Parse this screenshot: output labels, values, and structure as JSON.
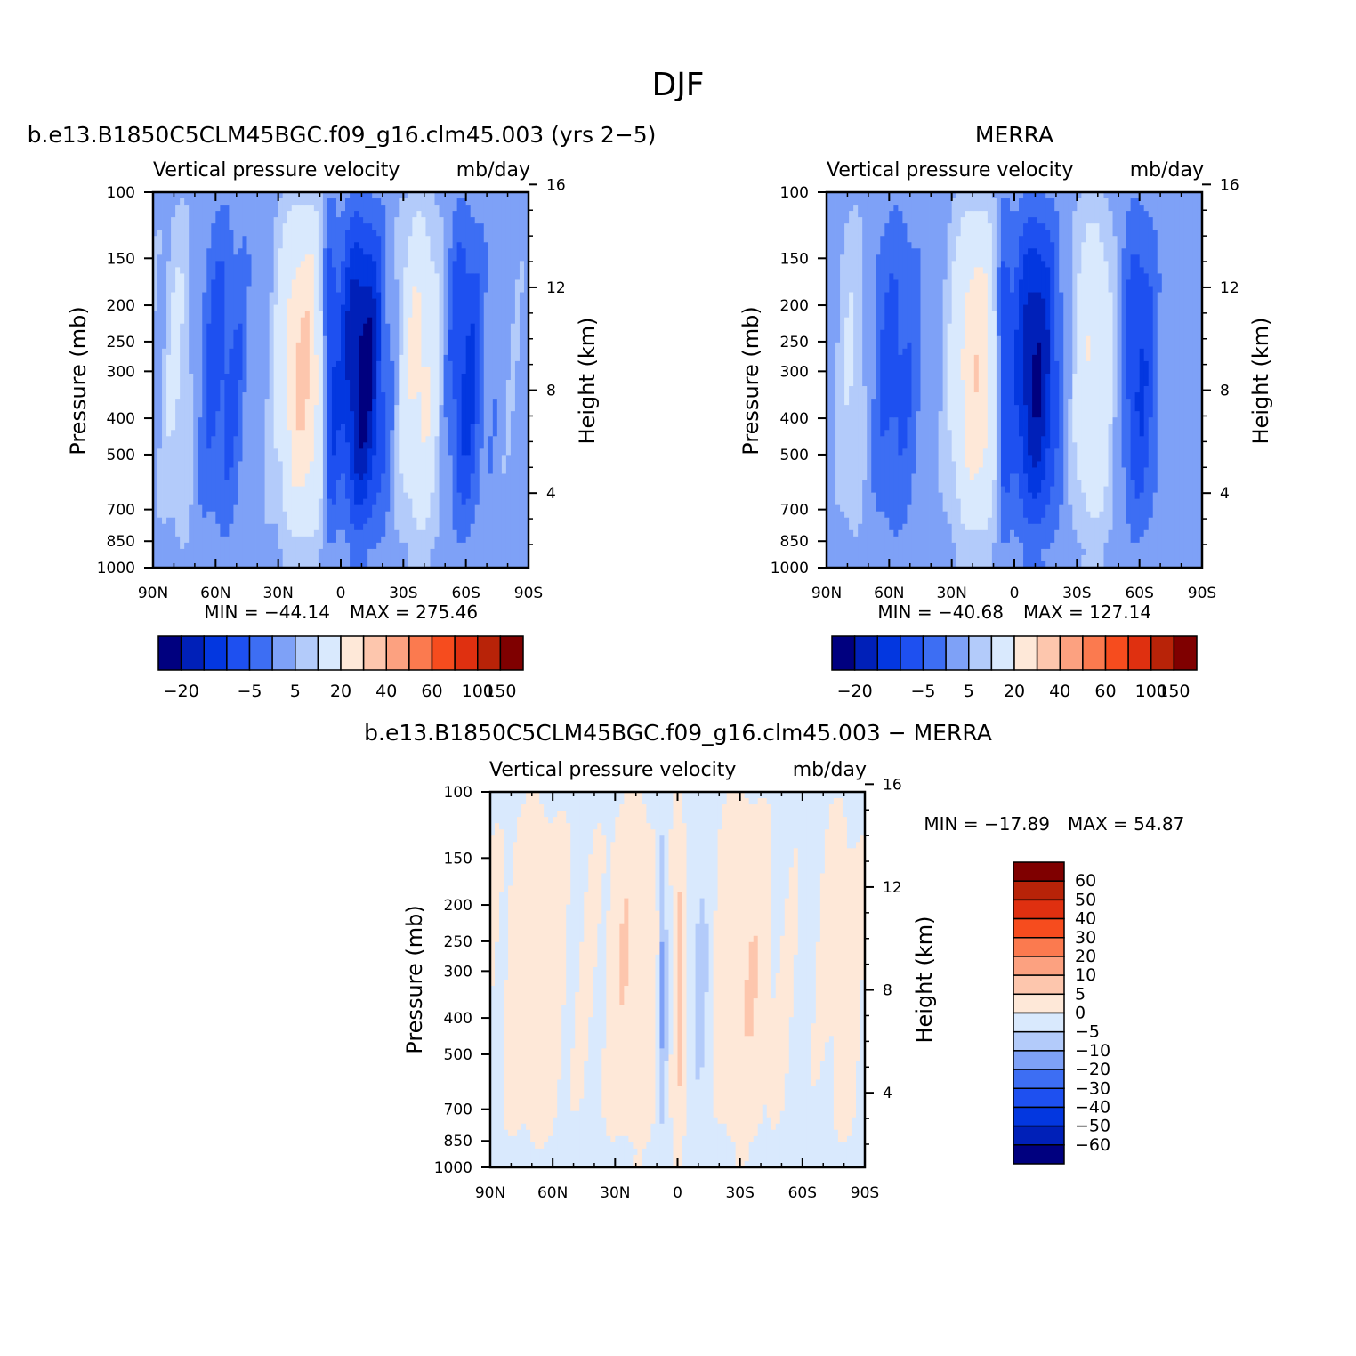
{
  "figure": {
    "title": "DJF"
  },
  "panel_titles": [
    "b.e13.B1850C5CLM45BGC.f09_g16.clm45.003 (yrs 2−5)",
    "MERRA",
    "b.e13.B1850C5CLM45BGC.f09_g16.clm45.003 − MERRA"
  ],
  "chart_data": [
    {
      "type": "heatmap",
      "panel": "model",
      "title": "b.e13.B1850C5CLM45BGC.f09_g16.clm45.003 (yrs 2−5)",
      "subtitle_left": "Vertical pressure velocity",
      "subtitle_right": "mb/day",
      "ylabel": "Pressure (mb)",
      "y2label": "Height (km)",
      "xticks": [
        "90N",
        "60N",
        "30N",
        "0",
        "30S",
        "60S",
        "90S"
      ],
      "yticks": [
        100,
        150,
        200,
        250,
        300,
        400,
        500,
        700,
        850,
        1000
      ],
      "y2ticks": [
        4,
        8,
        12,
        16
      ],
      "min_text": "MIN = −44.14",
      "max_text": "MAX = 275.46",
      "colorbar": {
        "levels": [
          -20,
          -15,
          -10,
          -5,
          0,
          5,
          10,
          20,
          30,
          40,
          50,
          60,
          80,
          100,
          150
        ],
        "tick_labels": [
          "−20",
          "−5",
          "5",
          "20",
          "40",
          "60",
          "100",
          "150"
        ]
      },
      "colors": [
        "#00007f",
        "#0020b8",
        "#0337e0",
        "#1e50f0",
        "#3d6ef3",
        "#7ea1f7",
        "#b3cbfa",
        "#d9e9fd",
        "#fee8d8",
        "#fdc6ad",
        "#fca180",
        "#fb7a4f",
        "#f64c1e",
        "#df3010",
        "#b82308",
        "#7f0000"
      ]
    },
    {
      "type": "heatmap",
      "panel": "obs",
      "title": "MERRA",
      "subtitle_left": "Vertical pressure velocity",
      "subtitle_right": "mb/day",
      "ylabel": "Pressure (mb)",
      "y2label": "Height (km)",
      "xticks": [
        "90N",
        "60N",
        "30N",
        "0",
        "30S",
        "60S",
        "90S"
      ],
      "yticks": [
        100,
        150,
        200,
        250,
        300,
        400,
        500,
        700,
        850,
        1000
      ],
      "y2ticks": [
        4,
        8,
        12,
        16
      ],
      "min_text": "MIN = −40.68",
      "max_text": "MAX = 127.14",
      "colorbar": {
        "levels": [
          -20,
          -15,
          -10,
          -5,
          0,
          5,
          10,
          20,
          30,
          40,
          50,
          60,
          80,
          100,
          150
        ],
        "tick_labels": [
          "−20",
          "−5",
          "5",
          "20",
          "40",
          "60",
          "100",
          "150"
        ]
      },
      "colors": [
        "#00007f",
        "#0020b8",
        "#0337e0",
        "#1e50f0",
        "#3d6ef3",
        "#7ea1f7",
        "#b3cbfa",
        "#d9e9fd",
        "#fee8d8",
        "#fdc6ad",
        "#fca180",
        "#fb7a4f",
        "#f64c1e",
        "#df3010",
        "#b82308",
        "#7f0000"
      ]
    },
    {
      "type": "heatmap",
      "panel": "difference",
      "title": "b.e13.B1850C5CLM45BGC.f09_g16.clm45.003 − MERRA",
      "subtitle_left": "Vertical pressure velocity",
      "subtitle_right": "mb/day",
      "ylabel": "Pressure (mb)",
      "y2label": "Height (km)",
      "xticks": [
        "90N",
        "60N",
        "30N",
        "0",
        "30S",
        "60S",
        "90S"
      ],
      "yticks": [
        100,
        150,
        200,
        250,
        300,
        400,
        500,
        700,
        850,
        1000
      ],
      "y2ticks": [
        4,
        8,
        12,
        16
      ],
      "min_text": "MIN = −17.89",
      "max_text": "MAX =   54.87",
      "colorbar": {
        "levels": [
          -60,
          -50,
          -40,
          -30,
          -20,
          -10,
          -5,
          0,
          5,
          10,
          20,
          30,
          40,
          50,
          60
        ],
        "tick_labels": [
          "60",
          "50",
          "40",
          "30",
          "20",
          "10",
          "5",
          "0",
          "−5",
          "−10",
          "−20",
          "−30",
          "−40",
          "−50",
          "−60"
        ]
      },
      "colors": [
        "#00007f",
        "#0020b8",
        "#0337e0",
        "#1e50f0",
        "#3d6ef3",
        "#7ea1f7",
        "#b3cbfa",
        "#d9e9fd",
        "#fee8d8",
        "#fdc6ad",
        "#fca180",
        "#fb7a4f",
        "#f64c1e",
        "#df3010",
        "#b82308",
        "#7f0000"
      ]
    }
  ]
}
